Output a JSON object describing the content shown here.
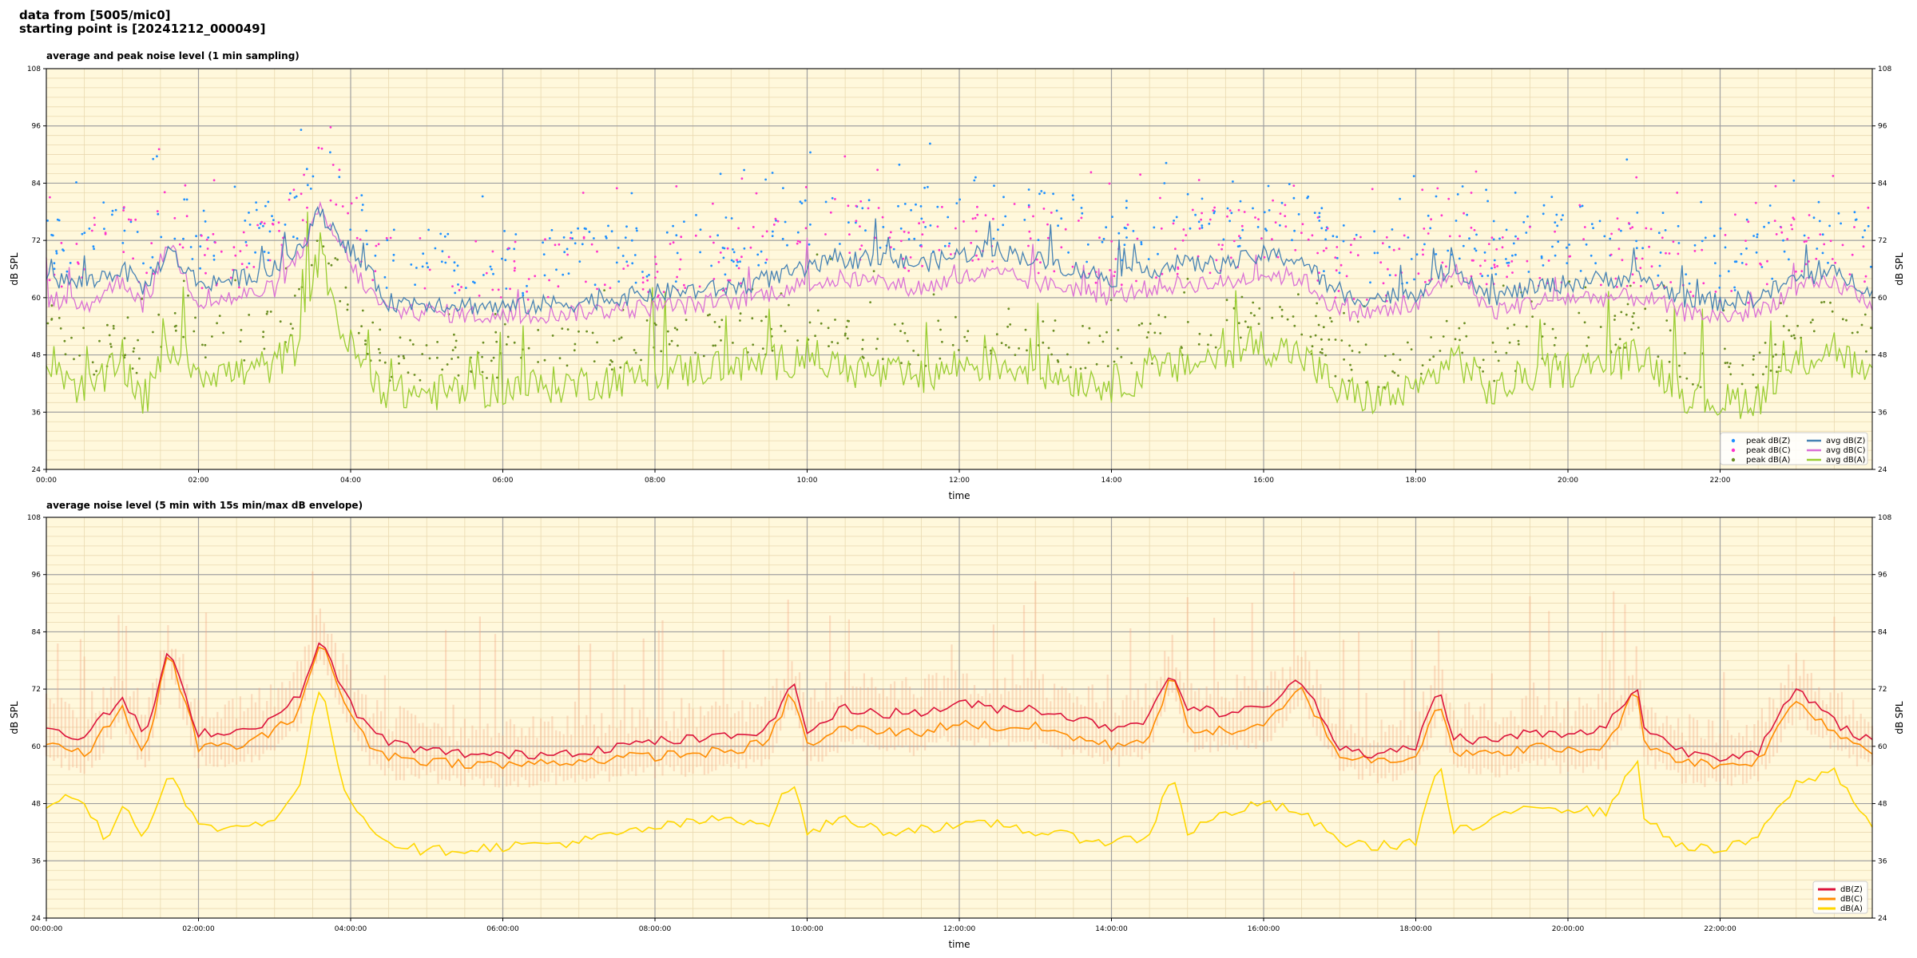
{
  "header": {
    "line1": "data from [5005/mic0]",
    "line2": "starting point is [20241212_000049]"
  },
  "colors": {
    "background": "#fff8dc",
    "grid_major": "#a0a0a0",
    "grid_minor": "#ead9b0",
    "avg_z": "#4682b4",
    "avg_c": "#da70d6",
    "avg_a": "#9acd32",
    "env_z": "#dc143c",
    "env_c": "#ff8c00",
    "env_a": "#ffd700",
    "envelope_fill": "#f4a582"
  },
  "chart_data": [
    {
      "type": "line",
      "title": "average and peak noise level (1 min sampling)",
      "xlabel": "time",
      "ylabel": "dB SPL",
      "ylabel_right": "dB SPL",
      "xlim_hours": [
        0,
        24
      ],
      "ylim": [
        24,
        108
      ],
      "yticks": [
        24,
        36,
        48,
        60,
        72,
        84,
        96,
        108
      ],
      "xtick_labels": [
        "00:00",
        "02:00",
        "04:00",
        "06:00",
        "08:00",
        "10:00",
        "12:00",
        "14:00",
        "16:00",
        "18:00",
        "20:00",
        "22:00"
      ],
      "grid": true,
      "legend_placement": "lower-right",
      "legend": [
        {
          "label": "peak dB(Z)",
          "kind": "dot",
          "color": "#1e90ff"
        },
        {
          "label": "peak dB(C)",
          "kind": "dot",
          "color": "#ff33cc"
        },
        {
          "label": "peak dB(A)",
          "kind": "dot",
          "color": "#6b8e23"
        },
        {
          "label": "avg dB(Z)",
          "kind": "line",
          "color": "#4682b4"
        },
        {
          "label": "avg dB(C)",
          "kind": "line",
          "color": "#da70d6"
        },
        {
          "label": "avg dB(A)",
          "kind": "line",
          "color": "#9acd32"
        }
      ],
      "series": [
        {
          "name": "avg dB(Z)",
          "color": "#4682b4",
          "hours": [
            0,
            0.5,
            1,
            1.3,
            1.6,
            2,
            2.5,
            3,
            3.3,
            3.6,
            3.9,
            4.2,
            4.5,
            5,
            6,
            7,
            8,
            9,
            9.5,
            10,
            10.5,
            11,
            11.5,
            12,
            12.5,
            13,
            13.5,
            14,
            14.5,
            15,
            15.5,
            16,
            16.5,
            17,
            17.5,
            18,
            18.5,
            19,
            19.5,
            20,
            20.5,
            21,
            21.5,
            22,
            22.5,
            23,
            23.5,
            24
          ],
          "values": [
            64,
            63,
            66,
            62,
            70,
            63,
            64,
            66,
            70,
            78,
            72,
            66,
            59,
            59,
            58,
            59,
            61,
            62,
            64,
            66,
            68,
            68,
            67,
            69,
            70,
            68,
            66,
            64,
            66,
            67,
            67,
            69,
            68,
            60,
            60,
            61,
            67,
            60,
            62,
            63,
            64,
            64,
            60,
            59,
            60,
            64,
            65,
            62
          ]
        },
        {
          "name": "avg dB(C)",
          "color": "#da70d6",
          "hours": [
            0,
            0.5,
            1,
            1.3,
            1.6,
            2,
            2.5,
            3,
            3.3,
            3.6,
            3.9,
            4.2,
            4.5,
            5,
            6,
            7,
            8,
            9,
            9.5,
            10,
            10.5,
            11,
            11.5,
            12,
            12.5,
            13,
            13.5,
            14,
            14.5,
            15,
            15.5,
            16,
            16.5,
            17,
            17.5,
            18,
            18.5,
            19,
            19.5,
            20,
            20.5,
            21,
            21.5,
            22,
            22.5,
            23,
            23.5,
            24
          ],
          "values": [
            60,
            58,
            64,
            58,
            72,
            59,
            60,
            62,
            68,
            78,
            70,
            62,
            57,
            57,
            56,
            57,
            58,
            59,
            61,
            63,
            64,
            63,
            62,
            64,
            65,
            63,
            62,
            60,
            62,
            63,
            63,
            65,
            64,
            57,
            57,
            58,
            66,
            57,
            59,
            60,
            60,
            60,
            57,
            56,
            57,
            62,
            63,
            59
          ]
        },
        {
          "name": "avg dB(A)",
          "color": "#9acd32",
          "hours": [
            0,
            0.5,
            1,
            1.3,
            1.6,
            2,
            2.5,
            3,
            3.3,
            3.6,
            3.9,
            4.2,
            4.5,
            5,
            6,
            7,
            8,
            9,
            9.5,
            10,
            10.5,
            11,
            11.5,
            12,
            12.5,
            13,
            13.5,
            14,
            14.5,
            15,
            15.5,
            16,
            16.5,
            17,
            17.5,
            18,
            18.5,
            19,
            19.5,
            20,
            20.5,
            21,
            21.5,
            22,
            22.5,
            23,
            23.5,
            24
          ],
          "values": [
            48,
            40,
            46,
            38,
            50,
            45,
            44,
            46,
            50,
            70,
            52,
            45,
            40,
            40,
            41,
            42,
            44,
            46,
            46,
            48,
            45,
            44,
            43,
            46,
            46,
            45,
            43,
            42,
            44,
            46,
            48,
            50,
            48,
            40,
            39,
            40,
            48,
            40,
            44,
            45,
            46,
            48,
            40,
            38,
            39,
            46,
            50,
            42
          ]
        }
      ]
    },
    {
      "type": "line",
      "title": "average noise level (5 min with 15s min/max dB envelope)",
      "xlabel": "time",
      "ylabel": "dB SPL",
      "ylabel_right": "dB SPL",
      "xlim_hours": [
        0,
        24
      ],
      "ylim": [
        24,
        108
      ],
      "yticks": [
        24,
        36,
        48,
        60,
        72,
        84,
        96,
        108
      ],
      "xtick_labels": [
        "00:00:00",
        "02:00:00",
        "04:00:00",
        "06:00:00",
        "08:00:00",
        "10:00:00",
        "12:00:00",
        "14:00:00",
        "16:00:00",
        "18:00:00",
        "20:00:00",
        "22:00:00"
      ],
      "grid": true,
      "legend_placement": "lower-right",
      "legend": [
        {
          "label": "dB(Z)",
          "kind": "line",
          "color": "#dc143c"
        },
        {
          "label": "dB(C)",
          "kind": "line",
          "color": "#ff8c00"
        },
        {
          "label": "dB(A)",
          "kind": "line",
          "color": "#ffd700"
        }
      ],
      "series": [
        {
          "name": "dB(Z)",
          "color": "#dc143c",
          "hours": [
            0,
            0.5,
            1,
            1.3,
            1.6,
            2,
            2.5,
            3,
            3.3,
            3.6,
            3.9,
            4.2,
            4.5,
            5,
            6,
            7,
            8,
            9,
            9.5,
            9.8,
            10,
            10.5,
            11,
            11.5,
            12,
            12.5,
            13,
            13.5,
            14,
            14.5,
            14.8,
            15,
            15.5,
            16,
            16.5,
            17,
            17.5,
            18,
            18.3,
            18.5,
            19,
            19.5,
            20,
            20.5,
            20.9,
            21,
            21.5,
            22,
            22.5,
            23,
            23.5,
            24
          ],
          "values": [
            64,
            62,
            70,
            62,
            80,
            63,
            63,
            66,
            70,
            82,
            72,
            64,
            61,
            59,
            58,
            59,
            61,
            62,
            64,
            74,
            63,
            68,
            67,
            67,
            69,
            68,
            68,
            66,
            64,
            66,
            76,
            68,
            67,
            68,
            74,
            60,
            58,
            60,
            72,
            62,
            61,
            63,
            62,
            64,
            73,
            64,
            59,
            58,
            59,
            72,
            65,
            61
          ]
        },
        {
          "name": "dB(C)",
          "color": "#ff8c00",
          "hours": [
            0,
            0.5,
            1,
            1.3,
            1.6,
            2,
            2.5,
            3,
            3.3,
            3.6,
            3.9,
            4.2,
            4.5,
            5,
            6,
            7,
            8,
            9,
            9.5,
            9.8,
            10,
            10.5,
            11,
            11.5,
            12,
            12.5,
            13,
            13.5,
            14,
            14.5,
            14.8,
            15,
            15.5,
            16,
            16.5,
            17,
            17.5,
            18,
            18.3,
            18.5,
            19,
            19.5,
            20,
            20.5,
            20.9,
            21,
            21.5,
            22,
            22.5,
            23,
            23.5,
            24
          ],
          "values": [
            61,
            58,
            68,
            58,
            80,
            60,
            60,
            63,
            67,
            82,
            70,
            61,
            58,
            57,
            56,
            57,
            58,
            59,
            61,
            72,
            60,
            64,
            63,
            63,
            65,
            64,
            64,
            62,
            60,
            62,
            75,
            64,
            63,
            64,
            72,
            58,
            57,
            58,
            70,
            59,
            58,
            60,
            59,
            60,
            72,
            61,
            57,
            56,
            57,
            70,
            63,
            59
          ]
        },
        {
          "name": "dB(A)",
          "color": "#ffd700",
          "hours": [
            0,
            0.3,
            0.6,
            0.8,
            1,
            1.3,
            1.6,
            2,
            2.5,
            3,
            3.3,
            3.6,
            3.9,
            4.2,
            4.5,
            5,
            6,
            7,
            8,
            9,
            9.5,
            9.8,
            10,
            10.5,
            11,
            11.5,
            12,
            12.5,
            13,
            13.5,
            14,
            14.5,
            14.8,
            15,
            15.5,
            16,
            16.5,
            17,
            17.5,
            18,
            18.3,
            18.5,
            19,
            19.5,
            20,
            20.5,
            20.9,
            21,
            21.5,
            22,
            22.5,
            23,
            23.5,
            24
          ],
          "values": [
            47,
            50,
            46,
            40,
            48,
            41,
            55,
            43,
            43,
            45,
            50,
            73,
            52,
            44,
            40,
            38,
            39,
            40,
            43,
            45,
            44,
            53,
            42,
            45,
            42,
            43,
            43,
            44,
            42,
            41,
            40,
            41,
            55,
            42,
            46,
            48,
            46,
            40,
            39,
            40,
            57,
            42,
            44,
            48,
            47,
            46,
            58,
            45,
            39,
            38,
            41,
            52,
            55,
            43
          ]
        }
      ]
    }
  ]
}
